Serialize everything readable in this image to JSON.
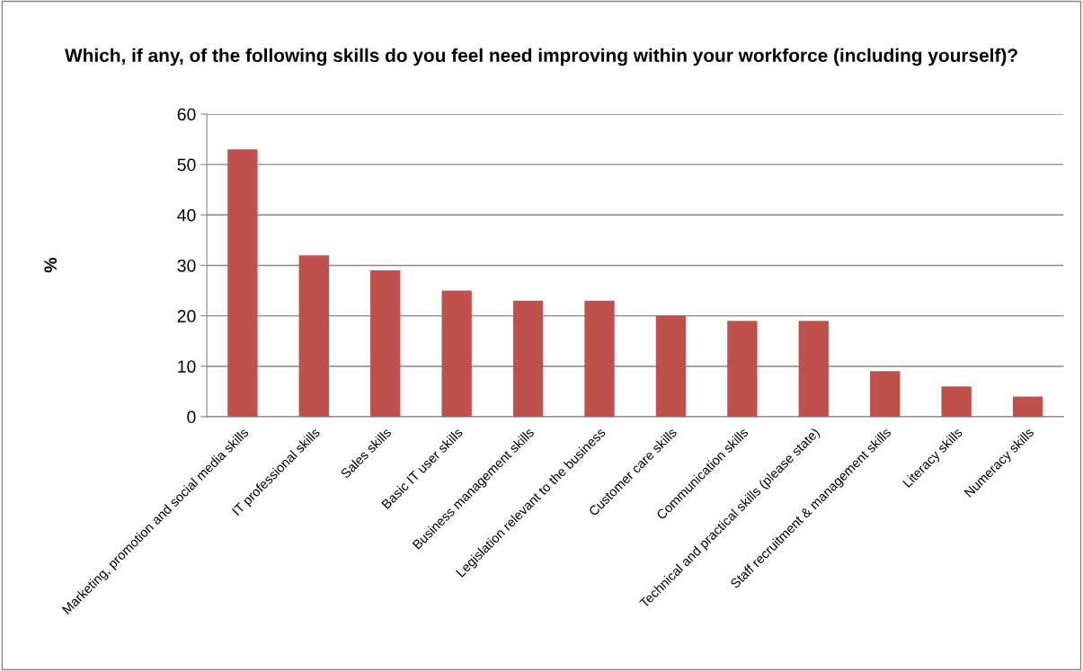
{
  "chart_data": {
    "type": "bar",
    "title": "Which, if any, of the following skills do you feel need improving within your workforce (including yourself)?",
    "ylabel": "%",
    "categories": [
      "Marketing, promotion and social media skills",
      "IT professional skills",
      "Sales skills",
      "Basic IT user skills",
      "Business management skills",
      "Legislation relevant to the business",
      "Customer care skills",
      "Communication skills",
      "Technical and practical skills (please state)",
      "Staff recruitment & management skills",
      "Literacy skills",
      "Numeracy skills"
    ],
    "values": [
      53,
      32,
      29,
      25,
      23,
      23,
      20,
      19,
      19,
      9,
      6,
      4
    ],
    "color": "#c0504d",
    "ylim": [
      0,
      60
    ],
    "yticks": [
      0,
      10,
      20,
      30,
      40,
      50,
      60
    ],
    "grid": "y"
  }
}
